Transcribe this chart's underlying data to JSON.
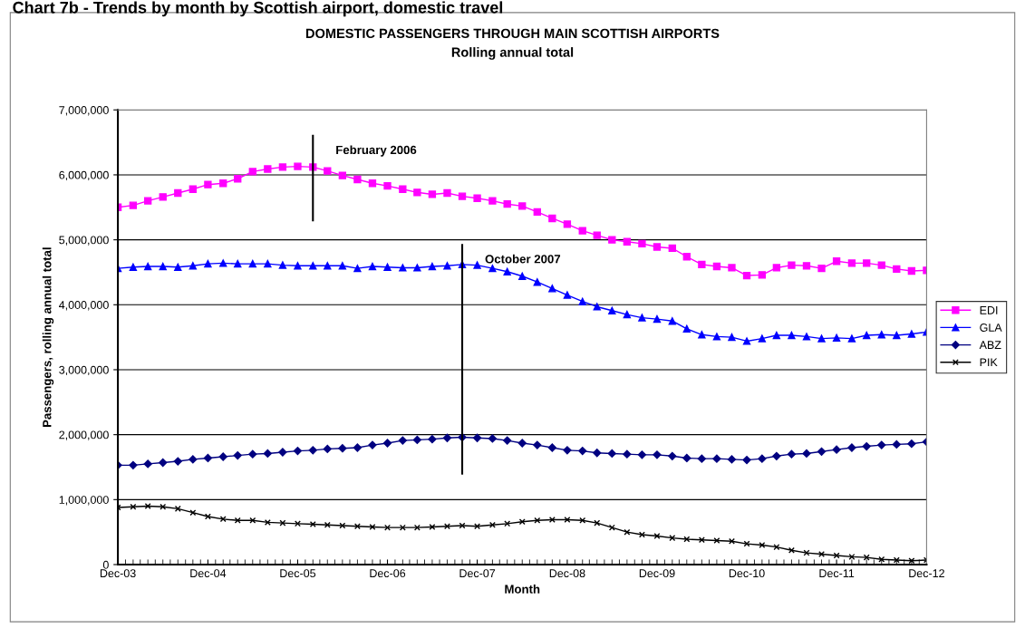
{
  "chart_data": {
    "type": "line",
    "title": "DOMESTIC PASSENGERS THROUGH MAIN SCOTTISH AIRPORTS",
    "subtitle": "Rolling annual total",
    "xlabel": "Month",
    "ylabel": "Passengers, rolling annual total",
    "annotations": [
      "Chart 7b - Trends by month by Scottish airport, domestic travel"
    ],
    "x": [
      "2003-12",
      "2004-02",
      "2004-04",
      "2004-06",
      "2004-08",
      "2004-10",
      "2004-12",
      "2005-02",
      "2005-04",
      "2005-06",
      "2005-08",
      "2005-10",
      "2005-12",
      "2006-02",
      "2006-04",
      "2006-06",
      "2006-08",
      "2006-10",
      "2006-12",
      "2007-02",
      "2007-04",
      "2007-06",
      "2007-08",
      "2007-10",
      "2007-12",
      "2008-02",
      "2008-04",
      "2008-06",
      "2008-08",
      "2008-10",
      "2008-12",
      "2009-02",
      "2009-04",
      "2009-06",
      "2009-08",
      "2009-10",
      "2009-12",
      "2010-02",
      "2010-04",
      "2010-06",
      "2010-08",
      "2010-10",
      "2010-12",
      "2011-02",
      "2011-04",
      "2011-06",
      "2011-08",
      "2011-10",
      "2011-12",
      "2012-02",
      "2012-04",
      "2012-06",
      "2012-08",
      "2012-10",
      "2012-12"
    ],
    "series": [
      {
        "name": "EDI",
        "color": "#ff00ff",
        "marker": "square",
        "values": [
          5500000,
          5530000,
          5600000,
          5660000,
          5720000,
          5780000,
          5850000,
          5870000,
          5940000,
          6050000,
          6090000,
          6120000,
          6130000,
          6120000,
          6060000,
          5990000,
          5930000,
          5870000,
          5830000,
          5780000,
          5730000,
          5700000,
          5720000,
          5670000,
          5640000,
          5600000,
          5550000,
          5520000,
          5430000,
          5330000,
          5240000,
          5140000,
          5070000,
          5000000,
          4970000,
          4940000,
          4890000,
          4870000,
          4740000,
          4620000,
          4590000,
          4570000,
          4450000,
          4460000,
          4570000,
          4610000,
          4600000,
          4560000,
          4670000,
          4640000,
          4640000,
          4610000,
          4550000,
          4520000,
          4530000
        ]
      },
      {
        "name": "GLA",
        "color": "#0000ff",
        "marker": "triangle",
        "values": [
          4560000,
          4580000,
          4590000,
          4590000,
          4580000,
          4600000,
          4630000,
          4640000,
          4630000,
          4630000,
          4630000,
          4610000,
          4600000,
          4600000,
          4600000,
          4600000,
          4560000,
          4590000,
          4580000,
          4570000,
          4570000,
          4590000,
          4600000,
          4620000,
          4610000,
          4560000,
          4510000,
          4440000,
          4350000,
          4250000,
          4150000,
          4050000,
          3970000,
          3910000,
          3850000,
          3800000,
          3780000,
          3750000,
          3630000,
          3540000,
          3510000,
          3500000,
          3440000,
          3480000,
          3530000,
          3530000,
          3510000,
          3480000,
          3490000,
          3480000,
          3530000,
          3540000,
          3530000,
          3550000,
          3580000
        ]
      },
      {
        "name": "ABZ",
        "color": "#000080",
        "marker": "diamond",
        "values": [
          1530000,
          1530000,
          1550000,
          1570000,
          1590000,
          1620000,
          1640000,
          1660000,
          1680000,
          1700000,
          1710000,
          1730000,
          1750000,
          1760000,
          1780000,
          1790000,
          1800000,
          1840000,
          1870000,
          1910000,
          1920000,
          1930000,
          1950000,
          1960000,
          1950000,
          1940000,
          1910000,
          1870000,
          1840000,
          1800000,
          1760000,
          1750000,
          1720000,
          1710000,
          1700000,
          1690000,
          1690000,
          1670000,
          1640000,
          1630000,
          1630000,
          1620000,
          1610000,
          1630000,
          1670000,
          1700000,
          1710000,
          1740000,
          1770000,
          1800000,
          1820000,
          1840000,
          1850000,
          1860000,
          1890000
        ]
      },
      {
        "name": "PIK",
        "color": "#000000",
        "marker": "cross",
        "values": [
          880000,
          890000,
          900000,
          890000,
          860000,
          800000,
          740000,
          700000,
          680000,
          680000,
          650000,
          640000,
          630000,
          620000,
          610000,
          600000,
          590000,
          580000,
          570000,
          570000,
          570000,
          580000,
          590000,
          600000,
          590000,
          610000,
          630000,
          660000,
          680000,
          690000,
          690000,
          680000,
          640000,
          570000,
          500000,
          460000,
          440000,
          410000,
          390000,
          380000,
          370000,
          360000,
          320000,
          300000,
          270000,
          220000,
          180000,
          160000,
          140000,
          120000,
          110000,
          80000,
          70000,
          60000,
          70000
        ]
      }
    ],
    "xlim": [
      "2003-12",
      "2012-12"
    ],
    "xticks": [
      {
        "value": "2003-12",
        "label": "Dec-03"
      },
      {
        "value": "2004-12",
        "label": "Dec-04"
      },
      {
        "value": "2005-12",
        "label": "Dec-05"
      },
      {
        "value": "2006-12",
        "label": "Dec-06"
      },
      {
        "value": "2007-12",
        "label": "Dec-07"
      },
      {
        "value": "2008-12",
        "label": "Dec-08"
      },
      {
        "value": "2009-12",
        "label": "Dec-09"
      },
      {
        "value": "2010-12",
        "label": "Dec-10"
      },
      {
        "value": "2011-12",
        "label": "Dec-11"
      },
      {
        "value": "2012-12",
        "label": "Dec-12"
      }
    ],
    "ylim": [
      0,
      7000000
    ],
    "yticks": [
      {
        "value": 0,
        "label": "0"
      },
      {
        "value": 1000000,
        "label": "1,000,000"
      },
      {
        "value": 2000000,
        "label": "2,000,000"
      },
      {
        "value": 3000000,
        "label": "3,000,000"
      },
      {
        "value": 4000000,
        "label": "4,000,000"
      },
      {
        "value": 5000000,
        "label": "5,000,000"
      },
      {
        "value": 6000000,
        "label": "6,000,000"
      },
      {
        "value": 7000000,
        "label": "7,000,000"
      }
    ],
    "ref_lines": [
      {
        "axis": "x",
        "value": "2006-02",
        "label": "February 2006",
        "color": "#000000"
      },
      {
        "axis": "x",
        "value": "2007-10",
        "label": "October 2007",
        "color": "#000000"
      }
    ],
    "grid": "y",
    "legend": "right",
    "line_style": "solid"
  }
}
